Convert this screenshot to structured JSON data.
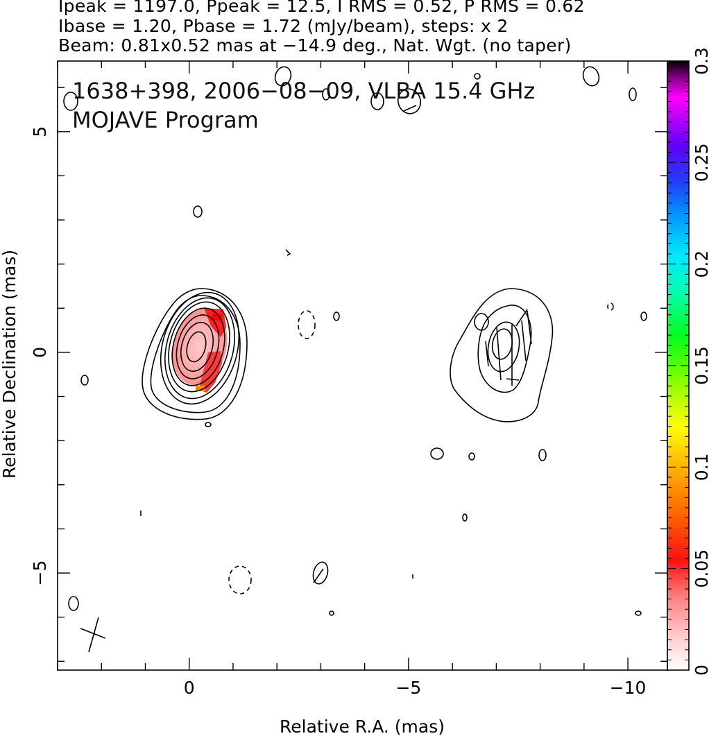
{
  "header": {
    "line1": "Ipeak = 1197.0, Ppeak = 12.5, I RMS = 0.52, P RMS = 0.62",
    "line2": "Ibase = 1.20, Pbase = 1.72 (mJy/beam), steps: x 2",
    "line3": "Beam: 0.81x0.52 mas at −14.9 deg., Nat. Wgt. (no taper)"
  },
  "plot": {
    "title_line1": "1638+398, 2006−08−09, VLBA 15.4 GHz",
    "title_line2": "MOJAVE Program"
  },
  "chart_data": {
    "type": "heatmap",
    "title": "1638+398, 2006−08−09, VLBA 15.4 GHz",
    "subtitle": "MOJAVE Program",
    "xlabel": "Relative R.A. (mas)",
    "ylabel": "Relative Declination (mas)",
    "xlim": [
      3.0,
      -10.9
    ],
    "ylim": [
      -7.2,
      6.6
    ],
    "x_ticks": [
      0,
      -5,
      -10
    ],
    "x_tick_labels": [
      "0",
      "−5",
      "−10"
    ],
    "y_ticks": [
      5,
      0,
      -5
    ],
    "y_tick_labels": [
      "5",
      "0",
      "−5"
    ],
    "colorbar": {
      "range": [
        0,
        0.3
      ],
      "ticks": [
        0,
        0.05,
        0.1,
        0.15,
        0.2,
        0.25,
        0.3
      ],
      "tick_labels": [
        "0",
        "0.05",
        "0.1",
        "0.15",
        "0.2",
        "0.25",
        "0.3"
      ]
    },
    "core": {
      "x": 0.0,
      "y": 0.1,
      "contour_levels": 9,
      "polarization_fraction_max": 0.08
    },
    "jet_component": {
      "x": -7.0,
      "y": -0.2,
      "contour_levels": 4
    },
    "beam": {
      "major_mas": 0.81,
      "minor_mas": 0.52,
      "pa_deg": -14.9
    }
  },
  "colors": {
    "background": "#ffffff",
    "contours": "#000000",
    "polarization": "#ff3030"
  }
}
